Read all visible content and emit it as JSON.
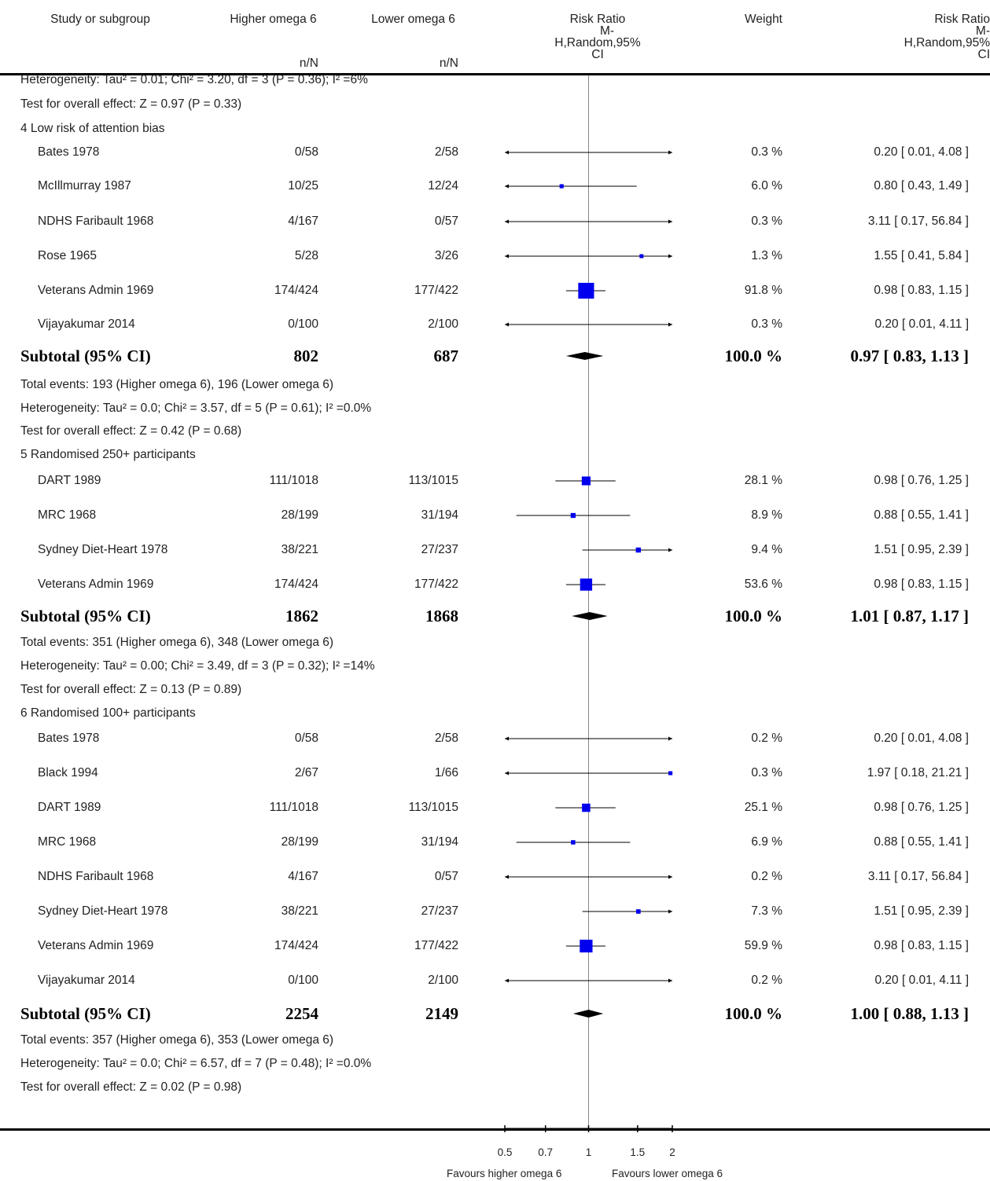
{
  "header": {
    "study": "Study or subgroup",
    "group1": "Higher omega 6",
    "group2": "Lower omega 6",
    "nN1": "n/N",
    "nN2": "n/N",
    "rr_plot": [
      "Risk Ratio",
      "M-",
      "H,Random,95%",
      "CI"
    ],
    "weight": "Weight",
    "rr_text": [
      "Risk Ratio",
      "M-",
      "H,Random,95%",
      "CI"
    ]
  },
  "rows": [
    {
      "kind": "stat",
      "text": "Heterogeneity: Tau² = 0.01; Chi² = 3.20, df = 3 (P = 0.36); I² =6%"
    },
    {
      "kind": "stat",
      "text": "Test for overall effect: Z = 0.97 (P = 0.33)"
    },
    {
      "kind": "group",
      "text": "4 Low risk of attention bias"
    },
    {
      "kind": "study",
      "name": "Bates 1978",
      "n1": "0/58",
      "n2": "2/58",
      "weight": "0.3 %",
      "ci": "0.20 [ 0.01, 4.08 ]"
    },
    {
      "kind": "study",
      "name": "McIllmurray 1987",
      "n1": "10/25",
      "n2": "12/24",
      "weight": "6.0 %",
      "ci": "0.80 [ 0.43, 1.49 ]"
    },
    {
      "kind": "study",
      "name": "NDHS Faribault 1968",
      "n1": "4/167",
      "n2": "0/57",
      "weight": "0.3 %",
      "ci": "3.11 [ 0.17, 56.84 ]"
    },
    {
      "kind": "study",
      "name": "Rose 1965",
      "n1": "5/28",
      "n2": "3/26",
      "weight": "1.3 %",
      "ci": "1.55 [ 0.41, 5.84 ]"
    },
    {
      "kind": "study",
      "name": "Veterans Admin 1969",
      "n1": "174/424",
      "n2": "177/422",
      "weight": "91.8 %",
      "ci": "0.98 [ 0.83, 1.15 ]"
    },
    {
      "kind": "study",
      "name": "Vijayakumar 2014",
      "n1": "0/100",
      "n2": "2/100",
      "weight": "0.3 %",
      "ci": "0.20 [ 0.01, 4.11 ]"
    },
    {
      "kind": "subtotal",
      "name": "Subtotal (95% CI)",
      "n1": "802",
      "n2": "687",
      "weight": "100.0 %",
      "ci": "0.97 [ 0.83, 1.13 ]"
    },
    {
      "kind": "stat",
      "text": "Total events: 193 (Higher omega 6), 196 (Lower omega 6)"
    },
    {
      "kind": "stat",
      "text": "Heterogeneity: Tau² = 0.0; Chi² = 3.57, df = 5 (P = 0.61); I² =0.0%"
    },
    {
      "kind": "stat",
      "text": "Test for overall effect: Z = 0.42 (P = 0.68)"
    },
    {
      "kind": "group",
      "text": "5 Randomised 250+ participants"
    },
    {
      "kind": "study",
      "name": "DART 1989",
      "n1": "111/1018",
      "n2": "113/1015",
      "weight": "28.1 %",
      "ci": "0.98 [ 0.76, 1.25 ]"
    },
    {
      "kind": "study",
      "name": "MRC 1968",
      "n1": "28/199",
      "n2": "31/194",
      "weight": "8.9 %",
      "ci": "0.88 [ 0.55, 1.41 ]"
    },
    {
      "kind": "study",
      "name": "Sydney Diet-Heart 1978",
      "n1": "38/221",
      "n2": "27/237",
      "weight": "9.4 %",
      "ci": "1.51 [ 0.95, 2.39 ]"
    },
    {
      "kind": "study",
      "name": "Veterans Admin 1969",
      "n1": "174/424",
      "n2": "177/422",
      "weight": "53.6 %",
      "ci": "0.98 [ 0.83, 1.15 ]"
    },
    {
      "kind": "subtotal",
      "name": "Subtotal (95% CI)",
      "n1": "1862",
      "n2": "1868",
      "weight": "100.0 %",
      "ci": "1.01 [ 0.87, 1.17 ]"
    },
    {
      "kind": "stat",
      "text": "Total events: 351 (Higher omega 6), 348 (Lower omega 6)"
    },
    {
      "kind": "stat",
      "text": "Heterogeneity: Tau² = 0.00; Chi² = 3.49, df = 3 (P = 0.32); I² =14%"
    },
    {
      "kind": "stat",
      "text": "Test for overall effect: Z = 0.13 (P = 0.89)"
    },
    {
      "kind": "group",
      "text": "6 Randomised 100+ participants"
    },
    {
      "kind": "study",
      "name": "Bates 1978",
      "n1": "0/58",
      "n2": "2/58",
      "weight": "0.2 %",
      "ci": "0.20 [ 0.01, 4.08 ]"
    },
    {
      "kind": "study",
      "name": "Black 1994",
      "n1": "2/67",
      "n2": "1/66",
      "weight": "0.3 %",
      "ci": "1.97 [ 0.18, 21.21 ]"
    },
    {
      "kind": "study",
      "name": "DART 1989",
      "n1": "111/1018",
      "n2": "113/1015",
      "weight": "25.1 %",
      "ci": "0.98 [ 0.76, 1.25 ]"
    },
    {
      "kind": "study",
      "name": "MRC 1968",
      "n1": "28/199",
      "n2": "31/194",
      "weight": "6.9 %",
      "ci": "0.88 [ 0.55, 1.41 ]"
    },
    {
      "kind": "study",
      "name": "NDHS Faribault 1968",
      "n1": "4/167",
      "n2": "0/57",
      "weight": "0.2 %",
      "ci": "3.11 [ 0.17, 56.84 ]"
    },
    {
      "kind": "study",
      "name": "Sydney Diet-Heart 1978",
      "n1": "38/221",
      "n2": "27/237",
      "weight": "7.3 %",
      "ci": "1.51 [ 0.95, 2.39 ]"
    },
    {
      "kind": "study",
      "name": "Veterans Admin 1969",
      "n1": "174/424",
      "n2": "177/422",
      "weight": "59.9 %",
      "ci": "0.98 [ 0.83, 1.15 ]"
    },
    {
      "kind": "study",
      "name": "Vijayakumar 2014",
      "n1": "0/100",
      "n2": "2/100",
      "weight": "0.2 %",
      "ci": "0.20 [ 0.01, 4.11 ]"
    },
    {
      "kind": "subtotal",
      "name": "Subtotal (95% CI)",
      "n1": "2254",
      "n2": "2149",
      "weight": "100.0 %",
      "ci": "1.00 [ 0.88, 1.13 ]"
    },
    {
      "kind": "stat",
      "text": "Total events: 357 (Higher omega 6), 353 (Lower omega 6)"
    },
    {
      "kind": "stat",
      "text": "Heterogeneity: Tau² = 0.0; Chi² = 6.57, df = 7 (P = 0.48); I² =0.0%"
    },
    {
      "kind": "stat",
      "text": "Test for overall effect: Z = 0.02 (P = 0.98)"
    }
  ],
  "axis": {
    "ticks": [
      0.5,
      0.7,
      1,
      1.5,
      2
    ],
    "tick_labels": [
      "0.5",
      "0.7",
      "1",
      "1.5",
      "2"
    ],
    "favours_left": "Favours higher omega 6",
    "favours_right": "Favours lower omega 6"
  },
  "colors": {
    "marker": "#0000ee",
    "diamond": "#000000",
    "line": "#000000",
    "null_line": "#888888"
  },
  "chart_data": {
    "type": "forest",
    "scale": "log",
    "xlim": [
      0.5,
      2
    ],
    "null_value": 1,
    "groups": [
      {
        "name": "4 Low risk of attention bias",
        "studies": [
          {
            "name": "Bates 1978",
            "rr": 0.2,
            "lo": 0.01,
            "hi": 4.08,
            "weight": 0.3
          },
          {
            "name": "McIllmurray 1987",
            "rr": 0.8,
            "lo": 0.43,
            "hi": 1.49,
            "weight": 6.0
          },
          {
            "name": "NDHS Faribault 1968",
            "rr": 3.11,
            "lo": 0.17,
            "hi": 56.84,
            "weight": 0.3
          },
          {
            "name": "Rose 1965",
            "rr": 1.55,
            "lo": 0.41,
            "hi": 5.84,
            "weight": 1.3
          },
          {
            "name": "Veterans Admin 1969",
            "rr": 0.98,
            "lo": 0.83,
            "hi": 1.15,
            "weight": 91.8
          },
          {
            "name": "Vijayakumar 2014",
            "rr": 0.2,
            "lo": 0.01,
            "hi": 4.11,
            "weight": 0.3
          }
        ],
        "subtotal": {
          "rr": 0.97,
          "lo": 0.83,
          "hi": 1.13
        }
      },
      {
        "name": "5 Randomised 250+ participants",
        "studies": [
          {
            "name": "DART 1989",
            "rr": 0.98,
            "lo": 0.76,
            "hi": 1.25,
            "weight": 28.1
          },
          {
            "name": "MRC 1968",
            "rr": 0.88,
            "lo": 0.55,
            "hi": 1.41,
            "weight": 8.9
          },
          {
            "name": "Sydney Diet-Heart 1978",
            "rr": 1.51,
            "lo": 0.95,
            "hi": 2.39,
            "weight": 9.4
          },
          {
            "name": "Veterans Admin 1969",
            "rr": 0.98,
            "lo": 0.83,
            "hi": 1.15,
            "weight": 53.6
          }
        ],
        "subtotal": {
          "rr": 1.01,
          "lo": 0.87,
          "hi": 1.17
        }
      },
      {
        "name": "6 Randomised 100+ participants",
        "studies": [
          {
            "name": "Bates 1978",
            "rr": 0.2,
            "lo": 0.01,
            "hi": 4.08,
            "weight": 0.2
          },
          {
            "name": "Black 1994",
            "rr": 1.97,
            "lo": 0.18,
            "hi": 21.21,
            "weight": 0.3
          },
          {
            "name": "DART 1989",
            "rr": 0.98,
            "lo": 0.76,
            "hi": 1.25,
            "weight": 25.1
          },
          {
            "name": "MRC 1968",
            "rr": 0.88,
            "lo": 0.55,
            "hi": 1.41,
            "weight": 6.9
          },
          {
            "name": "NDHS Faribault 1968",
            "rr": 3.11,
            "lo": 0.17,
            "hi": 56.84,
            "weight": 0.2
          },
          {
            "name": "Sydney Diet-Heart 1978",
            "rr": 1.51,
            "lo": 0.95,
            "hi": 2.39,
            "weight": 7.3
          },
          {
            "name": "Veterans Admin 1969",
            "rr": 0.98,
            "lo": 0.83,
            "hi": 1.15,
            "weight": 59.9
          },
          {
            "name": "Vijayakumar 2014",
            "rr": 0.2,
            "lo": 0.01,
            "hi": 4.11,
            "weight": 0.2
          }
        ],
        "subtotal": {
          "rr": 1.0,
          "lo": 0.88,
          "hi": 1.13
        }
      }
    ]
  }
}
